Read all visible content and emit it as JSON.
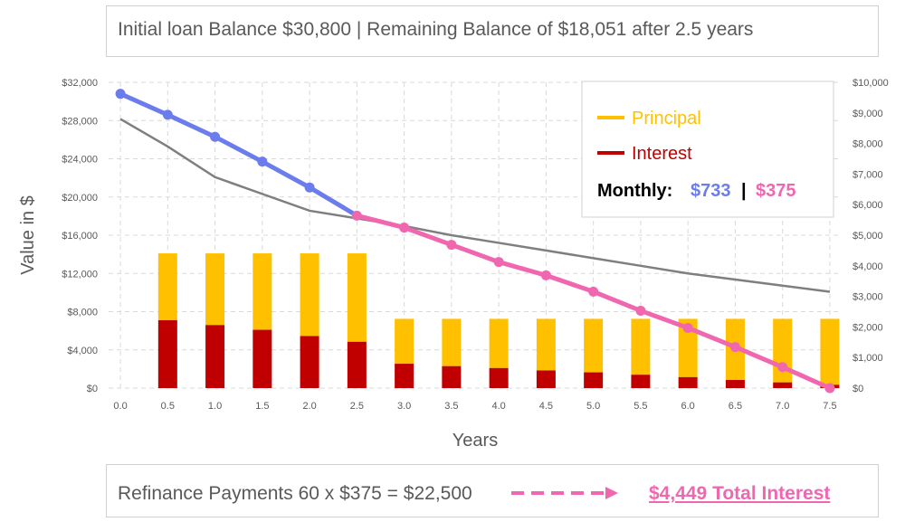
{
  "header": {
    "text": "Initial loan Balance $30,800  | Remaining Balance of $18,051 after 2.5 years"
  },
  "footer": {
    "text": "Refinance Payments 60 x $375 = $22,500",
    "link": "$4,449 Total Interest"
  },
  "colors": {
    "principal": "#ffc000",
    "interest": "#c00000",
    "original_balance": "#6b7ded",
    "refi_balance": "#f067b0",
    "comparison_line": "#7f7f7f",
    "grid": "#d9d9d9"
  },
  "chart_data": {
    "type": "bar",
    "x_ticks": [
      "0.0",
      "0.5",
      "1.0",
      "1.5",
      "2.0",
      "2.5",
      "3.0",
      "3.5",
      "4.0",
      "4.5",
      "5.0",
      "5.5",
      "6.0",
      "6.5",
      "7.0",
      "7.5"
    ],
    "x": [
      0.0,
      0.5,
      1.0,
      1.5,
      2.0,
      2.5,
      3.0,
      3.5,
      4.0,
      4.5,
      5.0,
      5.5,
      6.0,
      6.5,
      7.0,
      7.5
    ],
    "xlabel": "Years",
    "ylabel": "Value in $",
    "ylim": [
      0,
      32000
    ],
    "y_ticks": [
      "$0",
      "$4,000",
      "$8,000",
      "$12,000",
      "$16,000",
      "$20,000",
      "$24,000",
      "$28,000",
      "$32,000"
    ],
    "y2lim": [
      0,
      10000
    ],
    "y2_ticks": [
      "$0",
      "$1,000",
      "$2,000",
      "$3,000",
      "$4,000",
      "$5,000",
      "$6,000",
      "$7,000",
      "$8,000",
      "$9,000",
      "$10,000"
    ],
    "grid": true,
    "legend": {
      "placement": "top-right",
      "principal_label": "Principal",
      "interest_label": "Interest",
      "monthly_label": "Monthly:",
      "monthly_original": "$733",
      "separator": "|",
      "monthly_refi": "$375"
    },
    "bars": {
      "x": [
        0.5,
        1.0,
        1.5,
        2.0,
        2.5,
        3.0,
        3.5,
        4.0,
        4.5,
        5.0,
        5.5,
        6.0,
        6.5,
        7.0,
        7.5
      ],
      "total": [
        14100,
        14100,
        14100,
        14100,
        14100,
        7250,
        7250,
        7250,
        7250,
        7250,
        7250,
        7250,
        7250,
        7250,
        7250
      ],
      "interest": [
        7100,
        6600,
        6100,
        5450,
        4850,
        2550,
        2300,
        2100,
        1850,
        1650,
        1400,
        1150,
        850,
        600,
        350
      ]
    },
    "series": [
      {
        "name": "Principal",
        "kind": "stacked-bar-top",
        "note_axis": "left"
      },
      {
        "name": "Interest",
        "kind": "stacked-bar-bottom",
        "note_axis": "left"
      },
      {
        "kind": "line",
        "x": [
          0.0,
          0.5,
          1.0,
          1.5,
          2.0,
          2.5
        ],
        "values": [
          30800,
          28600,
          26300,
          23700,
          21000,
          18051
        ]
      },
      {
        "kind": "line",
        "x": [
          2.5,
          3.0,
          3.5,
          4.0,
          4.5,
          5.0,
          5.5,
          6.0,
          6.5,
          7.0,
          7.5
        ],
        "values": [
          18051,
          16800,
          15000,
          13200,
          11800,
          10100,
          8100,
          6300,
          4300,
          2200,
          0
        ]
      },
      {
        "kind": "line-secondary-axis",
        "x": [
          0.0,
          0.5,
          1.0,
          1.5,
          2.0,
          2.5,
          3.0,
          3.5,
          4.0,
          4.5,
          5.0,
          5.5,
          6.0,
          6.5,
          7.0,
          7.5
        ],
        "values": [
          8800,
          7900,
          6900,
          6350,
          5800,
          5550,
          5300,
          5000,
          4750,
          4500,
          4250,
          4000,
          3750,
          3550,
          3350,
          3150
        ]
      }
    ]
  }
}
